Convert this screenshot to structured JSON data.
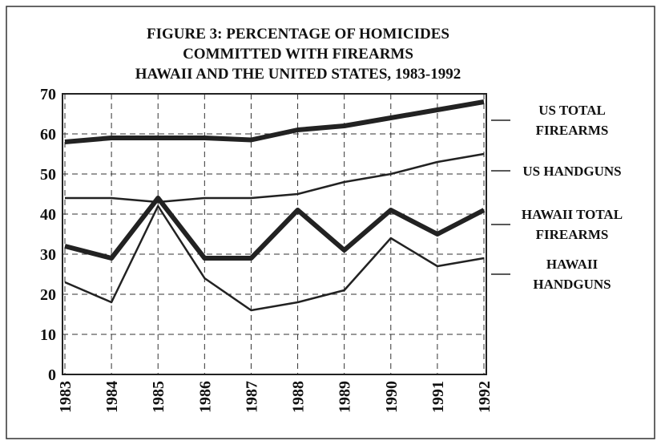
{
  "chart_data": {
    "type": "line",
    "title": [
      "FIGURE 3: PERCENTAGE OF HOMICIDES",
      "COMMITTED WITH FIREARMS",
      "HAWAII AND THE UNITED STATES, 1983-1992"
    ],
    "categories": [
      "1983",
      "1984",
      "1985",
      "1986",
      "1987",
      "1988",
      "1989",
      "1990",
      "1991",
      "1992"
    ],
    "series": [
      {
        "name": "US TOTAL FIREARMS",
        "color": "#222222",
        "line_width": 6,
        "values": [
          58,
          59,
          59,
          59,
          58.5,
          61,
          62,
          64,
          66,
          68
        ]
      },
      {
        "name": "US HANDGUNS",
        "color": "#222222",
        "line_width": 2.5,
        "values": [
          44,
          44,
          43,
          44,
          44,
          45,
          48,
          50,
          53,
          55
        ]
      },
      {
        "name": "HAWAII TOTAL FIREARMS",
        "color": "#222222",
        "line_width": 6,
        "values": [
          32,
          29,
          44,
          29,
          29,
          41,
          31,
          41,
          35,
          41
        ]
      },
      {
        "name": "HAWAII HANDGUNS",
        "color": "#222222",
        "line_width": 2.5,
        "values": [
          23,
          18,
          42,
          24,
          16,
          18,
          21,
          34,
          27,
          29
        ]
      }
    ],
    "ylim": [
      0,
      70
    ],
    "yticks": [
      0,
      10,
      20,
      30,
      40,
      50,
      60,
      70
    ],
    "grid": true
  }
}
